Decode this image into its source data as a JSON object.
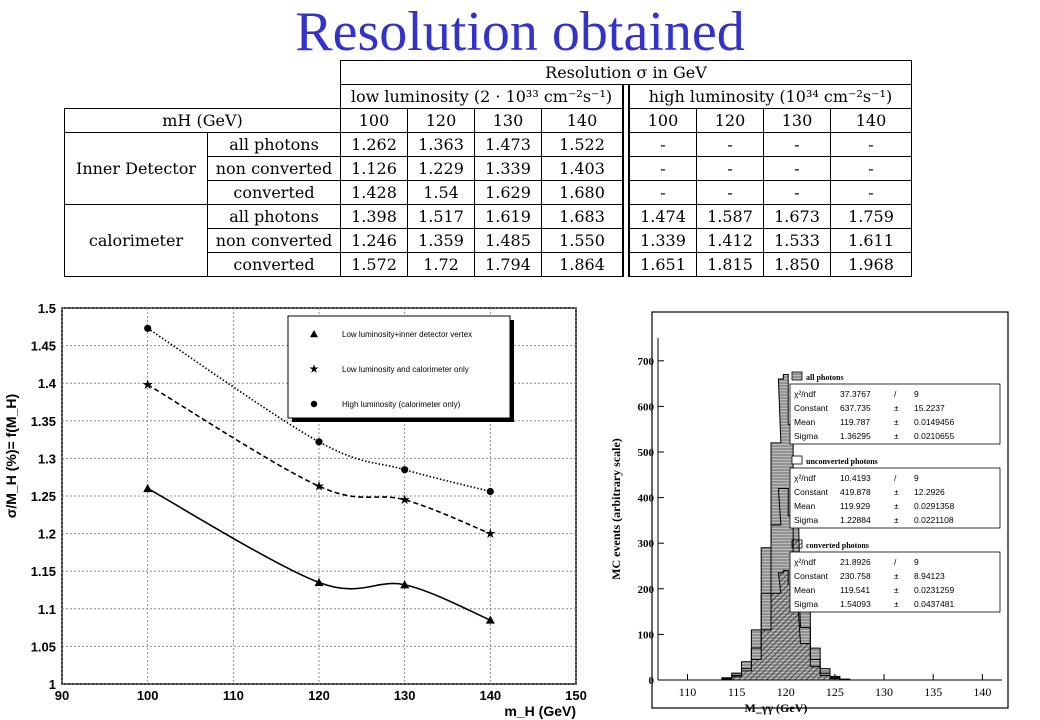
{
  "title": "Resolution obtained",
  "table": {
    "header_top": "Resolution σ in GeV",
    "low_lumi": "low luminosity (2 · 10³³ cm⁻²s⁻¹)",
    "high_lumi": "high luminosity (10³⁴ cm⁻²s⁻¹)",
    "mh_label": "mH (GeV)",
    "masses": [
      "100",
      "120",
      "130",
      "140"
    ],
    "groups": [
      {
        "name": "Inner Detector",
        "rows": [
          {
            "label": "all photons",
            "low": [
              "1.262",
              "1.363",
              "1.473",
              "1.522"
            ],
            "high": [
              "-",
              "-",
              "-",
              "-"
            ]
          },
          {
            "label": "non converted",
            "low": [
              "1.126",
              "1.229",
              "1.339",
              "1.403"
            ],
            "high": [
              "-",
              "-",
              "-",
              "-"
            ]
          },
          {
            "label": "converted",
            "low": [
              "1.428",
              "1.54",
              "1.629",
              "1.680"
            ],
            "high": [
              "-",
              "-",
              "-",
              "-"
            ]
          }
        ]
      },
      {
        "name": "calorimeter",
        "rows": [
          {
            "label": "all photons",
            "low": [
              "1.398",
              "1.517",
              "1.619",
              "1.683"
            ],
            "high": [
              "1.474",
              "1.587",
              "1.673",
              "1.759"
            ]
          },
          {
            "label": "non converted",
            "low": [
              "1.246",
              "1.359",
              "1.485",
              "1.550"
            ],
            "high": [
              "1.339",
              "1.412",
              "1.533",
              "1.611"
            ]
          },
          {
            "label": "converted",
            "low": [
              "1.572",
              "1.72",
              "1.794",
              "1.864"
            ],
            "high": [
              "1.651",
              "1.815",
              "1.850",
              "1.968"
            ]
          }
        ]
      }
    ]
  },
  "chart_data": [
    {
      "type": "line",
      "ylabel": "σ/M_H (%)= f(M_H)",
      "xlabel": "m_H (GeV)",
      "xlim": [
        90,
        150
      ],
      "ylim": [
        1,
        1.5
      ],
      "xticks": [
        "90",
        "100",
        "110",
        "120",
        "130",
        "140",
        "150"
      ],
      "yticks": [
        "1",
        "1.05",
        "1.1",
        "1.15",
        "1.2",
        "1.25",
        "1.3",
        "1.35",
        "1.4",
        "1.45",
        "1.5"
      ],
      "grid": true,
      "legend_position": "top-right",
      "series": [
        {
          "name": "Low luminosity+inner detector vertex",
          "marker": "triangle",
          "line": "solid",
          "x": [
            100,
            120,
            130,
            140
          ],
          "y": [
            1.26,
            1.135,
            1.132,
            1.085
          ]
        },
        {
          "name": "Low luminosity and calorimeter only",
          "marker": "star",
          "line": "dashed",
          "x": [
            100,
            120,
            130,
            140
          ],
          "y": [
            1.398,
            1.263,
            1.245,
            1.2
          ]
        },
        {
          "name": "High luminosity (calorimeter only)",
          "marker": "circle",
          "line": "dotted",
          "x": [
            100,
            120,
            130,
            140
          ],
          "y": [
            1.473,
            1.322,
            1.285,
            1.256
          ]
        }
      ]
    },
    {
      "type": "histogram",
      "ylabel": "MC events (arbitrary scale)",
      "xlabel": "M_γγ (GeV)",
      "xlim": [
        107,
        142
      ],
      "ylim": [
        0,
        750
      ],
      "xticks": [
        "110",
        "115",
        "120",
        "125",
        "130",
        "135",
        "140"
      ],
      "yticks": [
        "0",
        "100",
        "200",
        "300",
        "400",
        "500",
        "600",
        "700"
      ],
      "series": [
        {
          "name": "all photons",
          "fill": "hatched-gray",
          "x": [
            114,
            115,
            116,
            117,
            118,
            119,
            119.5,
            120,
            120.5,
            121,
            122,
            123,
            124,
            125,
            126
          ],
          "y": [
            5,
            15,
            40,
            110,
            290,
            520,
            660,
            670,
            560,
            390,
            180,
            70,
            25,
            8,
            2
          ]
        },
        {
          "name": "unconverted photons",
          "fill": "none",
          "x": [
            114,
            115,
            116,
            117,
            118,
            119,
            119.5,
            120,
            120.5,
            121,
            122,
            123,
            124,
            125,
            126
          ],
          "y": [
            3,
            10,
            25,
            70,
            190,
            340,
            420,
            420,
            360,
            250,
            115,
            45,
            15,
            5,
            1
          ]
        },
        {
          "name": "converted photons",
          "fill": "diagonal",
          "x": [
            114,
            115,
            116,
            117,
            118,
            119,
            119.5,
            120,
            120.5,
            121,
            122,
            123,
            124,
            125,
            126
          ],
          "y": [
            2,
            7,
            20,
            45,
            110,
            190,
            235,
            240,
            210,
            160,
            80,
            30,
            10,
            3,
            1
          ]
        }
      ],
      "stats": [
        {
          "header": "all photons",
          "rows": [
            [
              "χ²/ndf",
              "37.3767",
              "/",
              "9"
            ],
            [
              "Constant",
              "637.735",
              "±",
              "15.2237"
            ],
            [
              "Mean",
              "119.787",
              "±",
              "0.0149456"
            ],
            [
              "Sigma",
              "1.36295",
              "±",
              "0.0210655"
            ]
          ]
        },
        {
          "header": "unconverted photons",
          "rows": [
            [
              "χ²/ndf",
              "10.4193",
              "/",
              "9"
            ],
            [
              "Constant",
              "419.878",
              "±",
              "12.2926"
            ],
            [
              "Mean",
              "119.929",
              "±",
              "0.0291358"
            ],
            [
              "Sigma",
              "1.22884",
              "±",
              "0.0221108"
            ]
          ]
        },
        {
          "header": "converted photons",
          "rows": [
            [
              "χ²/ndf",
              "21.8926",
              "/",
              "9"
            ],
            [
              "Constant",
              "230.758",
              "±",
              "8.94123"
            ],
            [
              "Mean",
              "119.541",
              "±",
              "0.0231259"
            ],
            [
              "Sigma",
              "1.54093",
              "±",
              "0.0437481"
            ]
          ]
        }
      ]
    }
  ]
}
